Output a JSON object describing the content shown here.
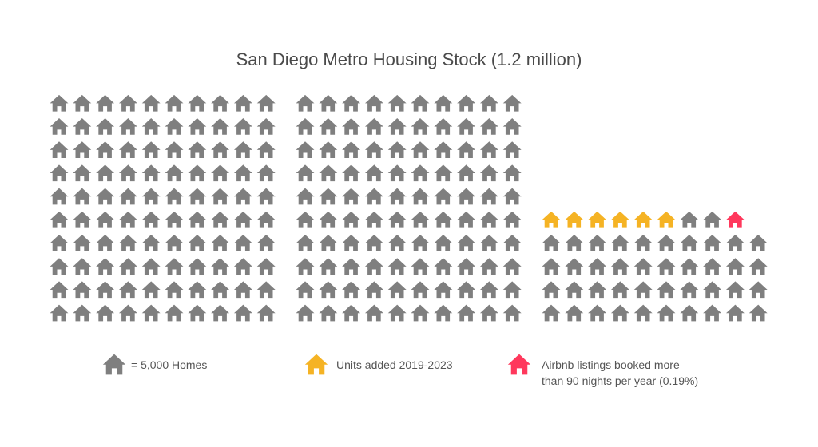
{
  "chart_data": {
    "type": "pictograph",
    "title": "San Diego Metro Housing Stock (1.2 million)",
    "unit": "= 5,000 Homes",
    "colors": {
      "default": "#7f7f7f",
      "new_units": "#f5b324",
      "airbnb": "#ff385c"
    },
    "blocks": [
      {
        "rows": [
          10,
          10,
          10,
          10,
          10,
          10,
          10,
          10,
          10,
          10
        ],
        "yellow": 0,
        "red": 0
      },
      {
        "rows": [
          10,
          10,
          10,
          10,
          10,
          10,
          10,
          10,
          10,
          10
        ],
        "yellow": 0,
        "red": 0
      },
      {
        "rows": [
          9,
          10,
          10,
          10,
          10
        ],
        "yellow": 6,
        "red": 1
      }
    ],
    "legend": [
      {
        "label": "= 5,000 Homes",
        "color": "default"
      },
      {
        "label": "Units added 2019-2023",
        "color": "new_units"
      },
      {
        "label_lines": [
          "Airbnb listings booked more",
          "than 90 nights per year (0.19%)"
        ],
        "color": "airbnb"
      }
    ]
  }
}
